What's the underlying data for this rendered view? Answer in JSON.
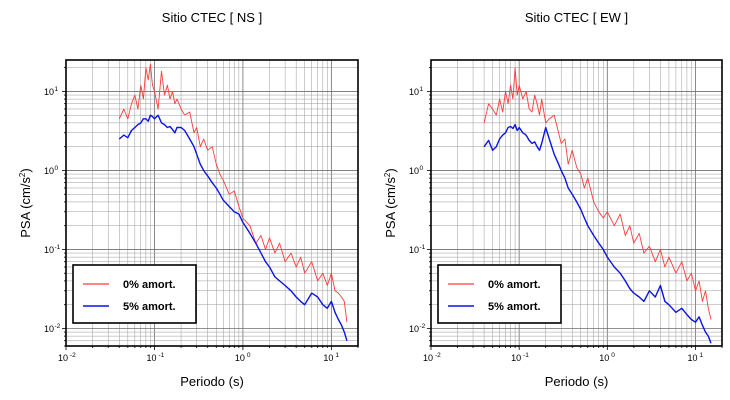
{
  "chart_data": [
    {
      "type": "line",
      "title": "Sitio CTEC [ NS ]",
      "xlabel": "Periodo (s)",
      "ylabel_base": "PSA (cm/s",
      "ylabel_sup": "2",
      "ylabel_end": ")",
      "x_scale": "log",
      "y_scale": "log",
      "xlim": [
        0.01,
        20
      ],
      "ylim": [
        0.006,
        25
      ],
      "grid": true,
      "legend_position": "bottom-left",
      "xticks": [
        {
          "base": "10",
          "exp": "-2",
          "value": 0.01
        },
        {
          "base": "10",
          "exp": "-1",
          "value": 0.1
        },
        {
          "base": "10",
          "exp": "0",
          "value": 1
        },
        {
          "base": "10",
          "exp": "1",
          "value": 10
        }
      ],
      "yticks": [
        {
          "base": "10",
          "exp": "-2",
          "value": 0.01
        },
        {
          "base": "10",
          "exp": "-1",
          "value": 0.1
        },
        {
          "base": "10",
          "exp": "0",
          "value": 1
        },
        {
          "base": "10",
          "exp": "1",
          "value": 10
        }
      ],
      "series": [
        {
          "name": "0% amort.",
          "color": "#ff3b3b",
          "x": [
            0.04,
            0.045,
            0.05,
            0.055,
            0.06,
            0.065,
            0.07,
            0.075,
            0.08,
            0.085,
            0.09,
            0.095,
            0.1,
            0.11,
            0.12,
            0.13,
            0.14,
            0.15,
            0.16,
            0.17,
            0.18,
            0.2,
            0.22,
            0.25,
            0.28,
            0.3,
            0.33,
            0.36,
            0.4,
            0.45,
            0.5,
            0.55,
            0.6,
            0.7,
            0.8,
            0.9,
            1.0,
            1.2,
            1.4,
            1.6,
            1.8,
            2.0,
            2.3,
            2.6,
            3.0,
            3.5,
            4.0,
            4.5,
            5.0,
            6.0,
            7.0,
            8.0,
            9.0,
            10.0,
            11.0,
            12.0,
            13.0,
            14.0,
            15.0
          ],
          "y": [
            4.5,
            6,
            4.5,
            7,
            9,
            6,
            12,
            8,
            20,
            14,
            22,
            12,
            10,
            6,
            18,
            9,
            12,
            8,
            10,
            7,
            8,
            6,
            5,
            5.5,
            3,
            3.5,
            2,
            2.5,
            1.8,
            2,
            1.2,
            0.9,
            0.75,
            0.5,
            0.55,
            0.35,
            0.25,
            0.2,
            0.12,
            0.15,
            0.1,
            0.14,
            0.09,
            0.12,
            0.07,
            0.09,
            0.06,
            0.08,
            0.05,
            0.07,
            0.04,
            0.05,
            0.035,
            0.05,
            0.03,
            0.028,
            0.025,
            0.022,
            0.012
          ]
        },
        {
          "name": "5% amort.",
          "color": "#0a14e6",
          "x": [
            0.04,
            0.045,
            0.05,
            0.055,
            0.06,
            0.065,
            0.07,
            0.075,
            0.08,
            0.085,
            0.09,
            0.095,
            0.1,
            0.11,
            0.12,
            0.13,
            0.14,
            0.15,
            0.16,
            0.17,
            0.18,
            0.2,
            0.22,
            0.25,
            0.28,
            0.3,
            0.33,
            0.36,
            0.4,
            0.45,
            0.5,
            0.55,
            0.6,
            0.7,
            0.8,
            0.9,
            1.0,
            1.2,
            1.4,
            1.6,
            1.8,
            2.0,
            2.3,
            2.6,
            3.0,
            3.5,
            4.0,
            4.5,
            5.0,
            6.0,
            7.0,
            8.0,
            9.0,
            10.0,
            11.0,
            12.0,
            13.0,
            14.0,
            15.0
          ],
          "y": [
            2.5,
            2.8,
            2.6,
            3.2,
            3.5,
            3.8,
            4,
            4.5,
            4.5,
            4.2,
            5,
            4.8,
            4.5,
            5,
            4,
            3.8,
            3.5,
            3.6,
            3.3,
            3,
            3.5,
            3.5,
            3.2,
            2.5,
            2,
            1.6,
            1.2,
            1.0,
            0.85,
            0.7,
            0.6,
            0.5,
            0.42,
            0.35,
            0.3,
            0.28,
            0.22,
            0.16,
            0.12,
            0.09,
            0.07,
            0.06,
            0.045,
            0.04,
            0.035,
            0.03,
            0.025,
            0.022,
            0.02,
            0.028,
            0.025,
            0.02,
            0.018,
            0.022,
            0.016,
            0.013,
            0.011,
            0.009,
            0.007
          ]
        }
      ]
    },
    {
      "type": "line",
      "title": "Sitio CTEC [ EW ]",
      "xlabel": "Periodo (s)",
      "ylabel_base": "PSA (cm/s",
      "ylabel_sup": "2",
      "ylabel_end": ")",
      "x_scale": "log",
      "y_scale": "log",
      "xlim": [
        0.01,
        20
      ],
      "ylim": [
        0.006,
        25
      ],
      "grid": true,
      "legend_position": "bottom-left",
      "xticks": [
        {
          "base": "10",
          "exp": "-2",
          "value": 0.01
        },
        {
          "base": "10",
          "exp": "-1",
          "value": 0.1
        },
        {
          "base": "10",
          "exp": "0",
          "value": 1
        },
        {
          "base": "10",
          "exp": "1",
          "value": 10
        }
      ],
      "yticks": [
        {
          "base": "10",
          "exp": "-2",
          "value": 0.01
        },
        {
          "base": "10",
          "exp": "-1",
          "value": 0.1
        },
        {
          "base": "10",
          "exp": "0",
          "value": 1
        },
        {
          "base": "10",
          "exp": "1",
          "value": 10
        }
      ],
      "series": [
        {
          "name": "0% amort.",
          "color": "#ff3b3b",
          "x": [
            0.04,
            0.045,
            0.05,
            0.055,
            0.06,
            0.065,
            0.07,
            0.075,
            0.08,
            0.085,
            0.09,
            0.095,
            0.1,
            0.11,
            0.12,
            0.13,
            0.14,
            0.15,
            0.16,
            0.17,
            0.18,
            0.2,
            0.22,
            0.25,
            0.28,
            0.3,
            0.33,
            0.36,
            0.4,
            0.45,
            0.5,
            0.55,
            0.6,
            0.7,
            0.8,
            0.9,
            1.0,
            1.2,
            1.4,
            1.6,
            1.8,
            2.0,
            2.3,
            2.6,
            3.0,
            3.5,
            4.0,
            4.5,
            5.0,
            6.0,
            7.0,
            8.0,
            9.0,
            10.0,
            11.0,
            12.0,
            13.0,
            14.0,
            15.0
          ],
          "y": [
            4,
            7,
            6,
            5,
            8,
            5.5,
            10,
            7,
            12,
            8,
            20,
            9,
            12,
            8,
            10,
            6,
            5.5,
            9,
            7,
            5,
            8,
            4,
            4.5,
            5,
            3,
            2.2,
            2.5,
            1.2,
            1.8,
            1.1,
            0.9,
            0.6,
            0.8,
            0.4,
            0.3,
            0.25,
            0.3,
            0.2,
            0.28,
            0.15,
            0.2,
            0.12,
            0.16,
            0.09,
            0.11,
            0.07,
            0.1,
            0.06,
            0.08,
            0.05,
            0.07,
            0.04,
            0.05,
            0.03,
            0.04,
            0.022,
            0.03,
            0.018,
            0.013
          ]
        },
        {
          "name": "5% amort.",
          "color": "#0a14e6",
          "x": [
            0.04,
            0.045,
            0.05,
            0.055,
            0.06,
            0.065,
            0.07,
            0.075,
            0.08,
            0.085,
            0.09,
            0.095,
            0.1,
            0.11,
            0.12,
            0.13,
            0.14,
            0.15,
            0.16,
            0.17,
            0.18,
            0.2,
            0.22,
            0.25,
            0.28,
            0.3,
            0.33,
            0.36,
            0.4,
            0.45,
            0.5,
            0.55,
            0.6,
            0.7,
            0.8,
            0.9,
            1.0,
            1.2,
            1.4,
            1.6,
            1.8,
            2.0,
            2.3,
            2.6,
            3.0,
            3.5,
            4.0,
            4.5,
            5.0,
            6.0,
            7.0,
            8.0,
            9.0,
            10.0,
            11.0,
            12.0,
            13.0,
            14.0,
            15.0
          ],
          "y": [
            2,
            2.4,
            1.8,
            2,
            2.5,
            2.8,
            3,
            3.5,
            3.6,
            3.4,
            3.8,
            3.2,
            3.5,
            3,
            2.8,
            2.4,
            2.2,
            2.3,
            2,
            1.8,
            2.2,
            3.5,
            2.5,
            1.6,
            1.2,
            1.0,
            0.8,
            0.6,
            0.5,
            0.4,
            0.32,
            0.25,
            0.2,
            0.15,
            0.12,
            0.1,
            0.08,
            0.06,
            0.05,
            0.04,
            0.032,
            0.028,
            0.025,
            0.022,
            0.03,
            0.025,
            0.035,
            0.022,
            0.02,
            0.016,
            0.018,
            0.015,
            0.013,
            0.012,
            0.014,
            0.011,
            0.009,
            0.008,
            0.0065
          ]
        }
      ]
    }
  ]
}
